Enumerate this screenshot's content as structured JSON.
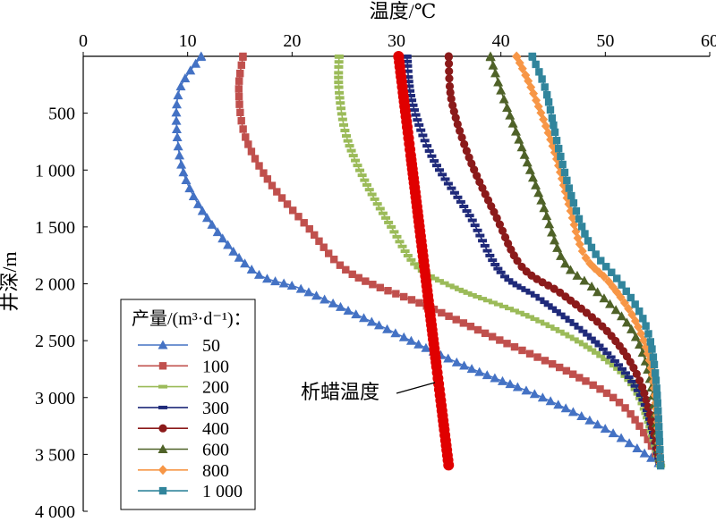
{
  "chart_data": {
    "type": "line",
    "xlabel": "温度/℃",
    "ylabel": "井深/m",
    "xlim": [
      0,
      60
    ],
    "ylim": [
      0,
      4000
    ],
    "x_ticks": [
      "0",
      "10",
      "20",
      "30",
      "40",
      "50",
      "60"
    ],
    "y_ticks": [
      "0",
      "500",
      "1 000",
      "1 500",
      "2 000",
      "2 500",
      "3 000",
      "3 500",
      "4 000"
    ],
    "x_axis_position": "top",
    "y_axis_reversed": true,
    "grid": false,
    "legend_position": "bottom-left",
    "legend_title": "产量/(m³·d⁻¹)：",
    "series": [
      {
        "name": "50",
        "color": "#4472C4",
        "marker": "triangle",
        "points": [
          [
            11.3,
            0
          ],
          [
            9.2,
            300
          ],
          [
            9.0,
            700
          ],
          [
            9.9,
            1100
          ],
          [
            12.5,
            1500
          ],
          [
            16.5,
            1900
          ],
          [
            21,
            2050
          ],
          [
            28,
            2350
          ],
          [
            36,
            2700
          ],
          [
            44,
            3000
          ],
          [
            50.5,
            3300
          ],
          [
            55.5,
            3600
          ]
        ]
      },
      {
        "name": "100",
        "color": "#C0504D",
        "marker": "square",
        "points": [
          [
            15.3,
            0
          ],
          [
            14.9,
            300
          ],
          [
            15.5,
            700
          ],
          [
            17.8,
            1100
          ],
          [
            21.5,
            1500
          ],
          [
            25.5,
            1900
          ],
          [
            33,
            2200
          ],
          [
            40,
            2500
          ],
          [
            47,
            2800
          ],
          [
            52,
            3100
          ],
          [
            55.5,
            3600
          ]
        ]
      },
      {
        "name": "200",
        "color": "#9BBB59",
        "marker": "dash",
        "points": [
          [
            24.5,
            0
          ],
          [
            24.5,
            300
          ],
          [
            25.2,
            700
          ],
          [
            27.0,
            1100
          ],
          [
            29.5,
            1500
          ],
          [
            32,
            1850
          ],
          [
            36,
            2050
          ],
          [
            43,
            2300
          ],
          [
            49,
            2600
          ],
          [
            53,
            2950
          ],
          [
            55.3,
            3600
          ]
        ]
      },
      {
        "name": "300",
        "color": "#1F2A7A",
        "marker": "dash",
        "points": [
          [
            31,
            0
          ],
          [
            31.5,
            400
          ],
          [
            33.5,
            900
          ],
          [
            37,
            1400
          ],
          [
            40,
            1900
          ],
          [
            44,
            2150
          ],
          [
            49.5,
            2550
          ],
          [
            53.5,
            3000
          ],
          [
            55.3,
            3600
          ]
        ]
      },
      {
        "name": "400",
        "color": "#8B1A1A",
        "marker": "circle",
        "points": [
          [
            35,
            0
          ],
          [
            35.3,
            400
          ],
          [
            37,
            900
          ],
          [
            39.5,
            1400
          ],
          [
            42,
            1850
          ],
          [
            46,
            2100
          ],
          [
            50.5,
            2450
          ],
          [
            53.5,
            2900
          ],
          [
            55.3,
            3600
          ]
        ]
      },
      {
        "name": "600",
        "color": "#4F6228",
        "marker": "triangle",
        "points": [
          [
            39,
            0
          ],
          [
            40,
            300
          ],
          [
            42,
            800
          ],
          [
            44,
            1300
          ],
          [
            46,
            1800
          ],
          [
            49,
            2050
          ],
          [
            52.5,
            2400
          ],
          [
            54.3,
            2850
          ],
          [
            55.3,
            3600
          ]
        ]
      },
      {
        "name": "800",
        "color": "#F79646",
        "marker": "diamond",
        "points": [
          [
            41.5,
            0
          ],
          [
            43,
            300
          ],
          [
            45,
            800
          ],
          [
            46.5,
            1300
          ],
          [
            48,
            1750
          ],
          [
            50.5,
            2000
          ],
          [
            53,
            2350
          ],
          [
            54.5,
            2800
          ],
          [
            55.3,
            3600
          ]
        ]
      },
      {
        "name": "1 000",
        "color": "#31859C",
        "marker": "square",
        "points": [
          [
            43,
            0
          ],
          [
            44.3,
            300
          ],
          [
            45.5,
            800
          ],
          [
            47,
            1300
          ],
          [
            48.8,
            1700
          ],
          [
            51.5,
            2000
          ],
          [
            53.8,
            2350
          ],
          [
            54.8,
            2800
          ],
          [
            55.3,
            3600
          ]
        ]
      },
      {
        "name": "析蜡温度",
        "color": "#E00000",
        "marker": "circle-large",
        "in_legend": false,
        "points": [
          [
            30.2,
            0
          ],
          [
            35,
            3600
          ]
        ]
      }
    ],
    "annotations": [
      {
        "text": "析蜡温度",
        "points_to": "析蜡温度"
      }
    ]
  }
}
